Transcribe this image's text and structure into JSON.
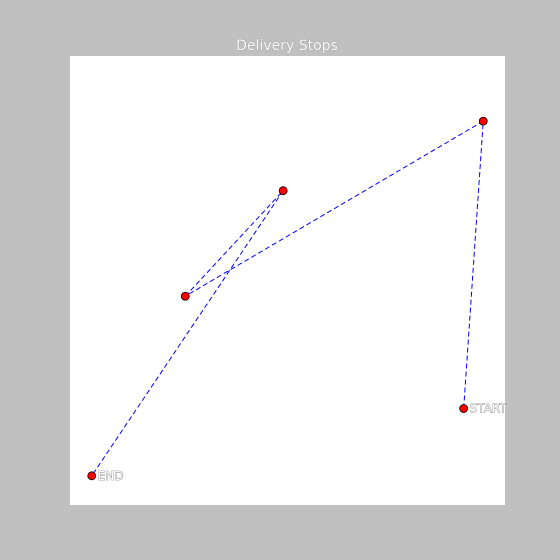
{
  "chart_data": {
    "type": "line",
    "title": "Delivery Stops",
    "xlabel": "",
    "ylabel": "",
    "xlim": [
      0,
      100
    ],
    "ylim": [
      0,
      100
    ],
    "grid": false,
    "axes_visible": false,
    "colors": {
      "figure_background": "#c0c0c0",
      "plot_background": "#ffffff",
      "route_line": "#0000ff",
      "stop_marker_fill": "#ff0000",
      "stop_marker_edge": "#000000"
    },
    "line_style": "dashed",
    "points": [
      {
        "x": 90.5,
        "y": 21.5,
        "label": "START"
      },
      {
        "x": 95.0,
        "y": 85.5,
        "label": ""
      },
      {
        "x": 26.5,
        "y": 46.5,
        "label": ""
      },
      {
        "x": 49.0,
        "y": 70.0,
        "label": ""
      },
      {
        "x": 5.0,
        "y": 6.5,
        "label": "END"
      }
    ]
  }
}
